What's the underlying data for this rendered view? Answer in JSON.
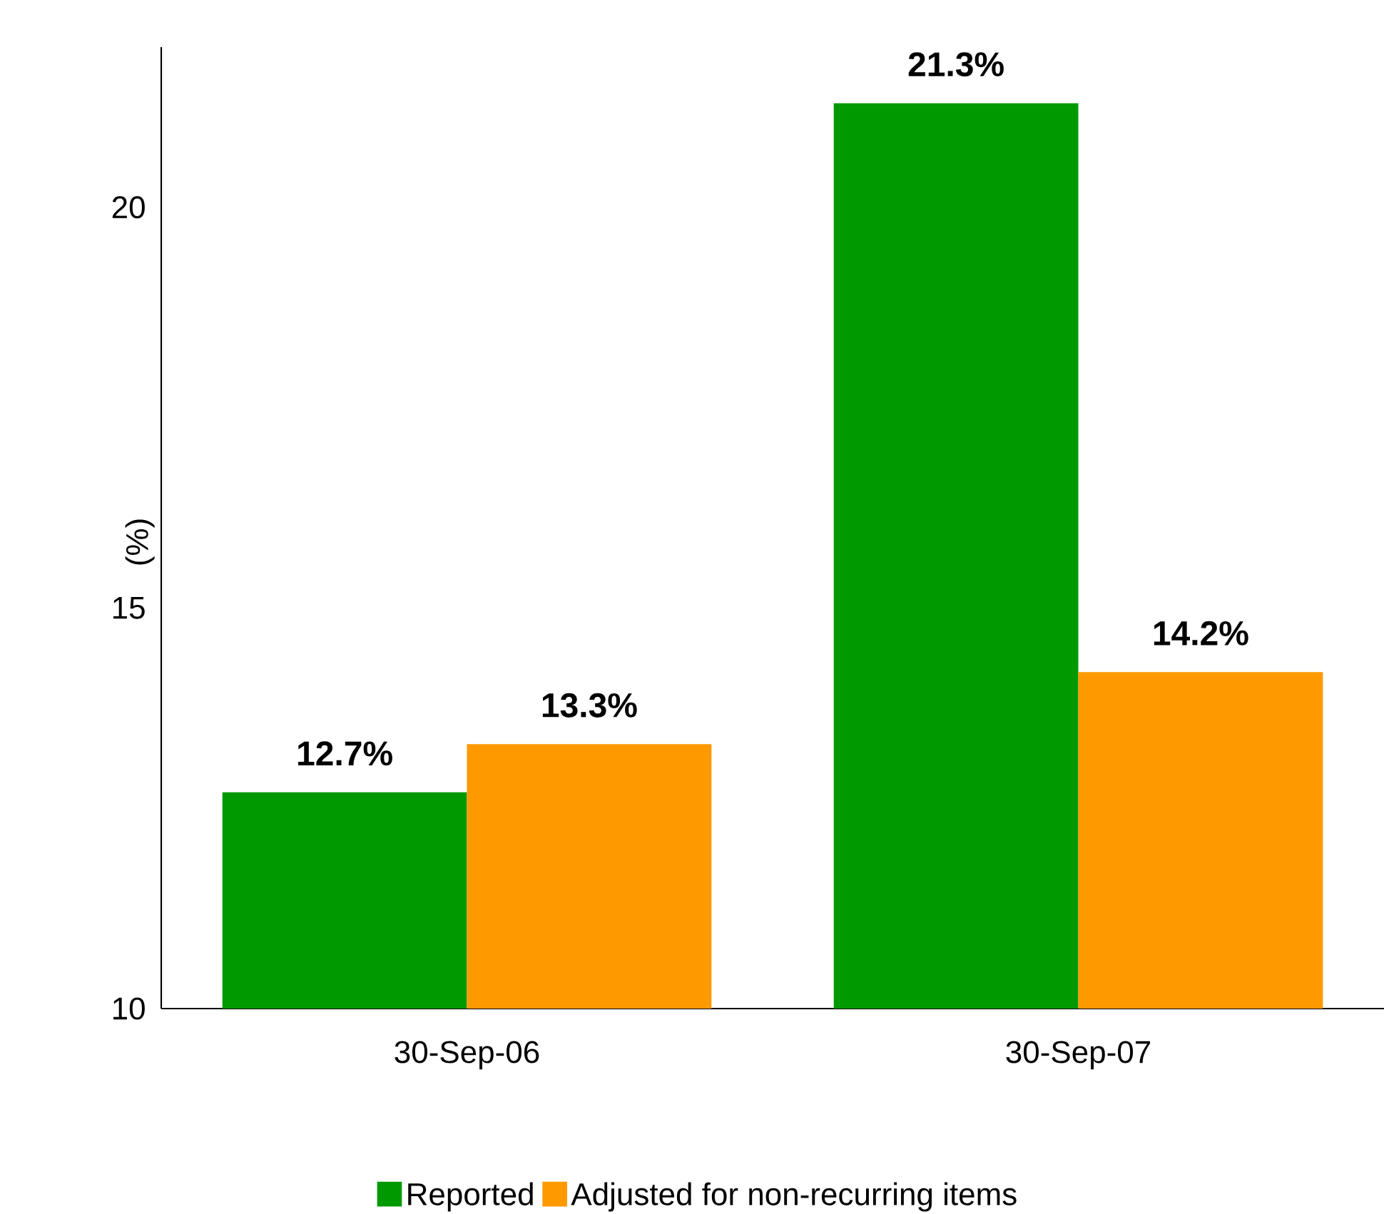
{
  "chart_data": {
    "type": "bar",
    "ylabel": "(%)",
    "categories": [
      "30-Sep-06",
      "30-Sep-07"
    ],
    "series": [
      {
        "name": "Reported",
        "color": "#009900",
        "values": [
          12.7,
          21.3
        ],
        "value_labels": [
          "12.7%",
          "21.3%"
        ]
      },
      {
        "name": "Adjusted for non-recurring items",
        "color": "#ff9900",
        "values": [
          13.3,
          14.2
        ],
        "value_labels": [
          "13.3%",
          "14.2%"
        ]
      }
    ],
    "ylim": [
      10,
      22
    ],
    "yticks": [
      10,
      15,
      20
    ],
    "legend": "bottom"
  }
}
